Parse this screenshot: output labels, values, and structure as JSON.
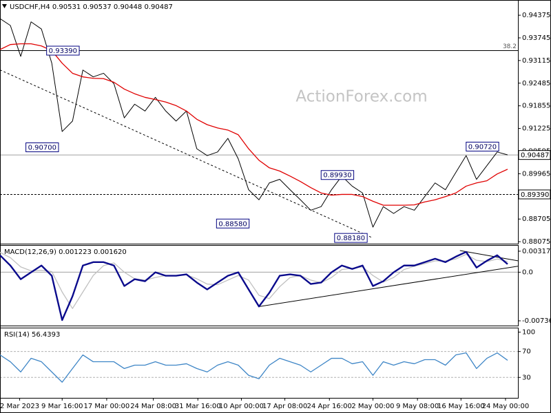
{
  "chart_data": [
    {
      "type": "line",
      "title": "USDCHF,H4  0.90531 0.90537 0.90448 0.90487",
      "watermark": "ActionForex.com",
      "x": [
        0,
        1,
        2,
        3,
        4,
        5,
        6,
        7,
        8,
        9,
        10,
        11,
        12,
        13,
        14,
        15,
        16,
        17,
        18,
        19,
        20,
        21,
        22,
        23,
        24,
        25,
        26,
        27,
        28,
        29,
        30,
        31,
        32,
        33,
        34,
        35,
        36,
        37,
        38,
        39,
        40,
        41,
        42,
        43,
        44,
        45,
        46,
        47,
        48,
        49
      ],
      "xlim": [
        0,
        50
      ],
      "ylim": [
        0.8802,
        0.9476
      ],
      "yticks": [
        0.94375,
        0.93745,
        0.93115,
        0.92485,
        0.91855,
        0.91225,
        0.90595,
        0.89965,
        0.88705,
        0.88075
      ],
      "series": [
        {
          "color": "#000000",
          "values": [
            0.9428,
            0.9409,
            0.9323,
            0.9419,
            0.9399,
            0.9304,
            0.9114,
            0.9143,
            0.9285,
            0.9266,
            0.9276,
            0.9247,
            0.9152,
            0.919,
            0.9171,
            0.9209,
            0.9171,
            0.9143,
            0.9171,
            0.9066,
            0.9047,
            0.9057,
            0.9095,
            0.9038,
            0.8952,
            0.8924,
            0.8971,
            0.8981,
            0.8952,
            0.8924,
            0.8895,
            0.8905,
            0.8952,
            0.899,
            0.8962,
            0.8943,
            0.8848,
            0.8905,
            0.8886,
            0.8905,
            0.8895,
            0.8933,
            0.8971,
            0.8952,
            0.9,
            0.9047,
            0.8981,
            0.9019,
            0.9057,
            0.9049
          ]
        },
        {
          "color": "#e00000",
          "values": [
            0.9342,
            0.9356,
            0.9358,
            0.9358,
            0.9352,
            0.9339,
            0.9304,
            0.9276,
            0.9266,
            0.9262,
            0.9261,
            0.9251,
            0.9232,
            0.9219,
            0.9209,
            0.9203,
            0.9196,
            0.9186,
            0.9171,
            0.9148,
            0.9133,
            0.9124,
            0.9118,
            0.9105,
            0.9066,
            0.9034,
            0.9013,
            0.9004,
            0.899,
            0.8975,
            0.8958,
            0.8943,
            0.8937,
            0.8939,
            0.8939,
            0.8933,
            0.892,
            0.8909,
            0.8909,
            0.8909,
            0.891,
            0.8918,
            0.8924,
            0.8933,
            0.8943,
            0.8962,
            0.8971,
            0.8977,
            0.8996,
            0.9009
          ]
        }
      ],
      "hlines": [
        {
          "value": 0.9339,
          "label": "38.2",
          "style": "solid",
          "color": "#000000"
        },
        {
          "value": 0.90487,
          "style": "solid",
          "color": "#a0a0a0"
        },
        {
          "value": 0.8939,
          "style": "dashed",
          "color": "#000000"
        }
      ],
      "trendlines": [
        {
          "x": [
            0,
            35.9
          ],
          "y": [
            0.92853,
            0.8819
          ],
          "style": "dashed",
          "color": "#000000"
        }
      ],
      "annotations": [
        {
          "label": "0.93390",
          "x": 4.5,
          "value": 0.9339
        },
        {
          "label": "0.90700",
          "x": 2.5,
          "value": 0.907
        },
        {
          "label": "0.88580",
          "x": 20.9,
          "value": 0.8858
        },
        {
          "label": "0.89930",
          "x": 31,
          "value": 0.8993
        },
        {
          "label": "0.88180",
          "x": 32.3,
          "value": 0.8818
        },
        {
          "label": "0.90720",
          "x": 45,
          "value": 0.9072
        }
      ],
      "axis_markers": [
        {
          "value": 0.90487,
          "label": "0.90487"
        },
        {
          "value": 0.8939,
          "label": "0.89390"
        }
      ]
    },
    {
      "type": "line",
      "title": "MACD(12,26,9) 0.001223 0.001620",
      "x": [
        0,
        1,
        2,
        3,
        4,
        5,
        6,
        7,
        8,
        9,
        10,
        11,
        12,
        13,
        14,
        15,
        16,
        17,
        18,
        19,
        20,
        21,
        22,
        23,
        24,
        25,
        26,
        27,
        28,
        29,
        30,
        31,
        32,
        33,
        34,
        35,
        36,
        37,
        38,
        39,
        40,
        41,
        42,
        43,
        44,
        45,
        46,
        47,
        48,
        49
      ],
      "xlim": [
        0,
        50
      ],
      "ylim": [
        -0.008084,
        0.004005
      ],
      "yticks": [
        0.003178,
        {
          "value": 0,
          "label": "0.0"
        },
        -0.007361
      ],
      "series": [
        {
          "color": "#c0c0c0",
          "values": [
            0.003,
            0.0022,
            0.0008,
            0.0002,
            0.0003,
            0.0001,
            -0.003,
            -0.0055,
            -0.003,
            -0.0005,
            0.001,
            0.0014,
            0,
            -0.001,
            -0.0012,
            -0.0008,
            -0.0005,
            -0.0005,
            -0.0004,
            -0.001,
            -0.0018,
            -0.0019,
            -0.0012,
            -0.0005,
            -0.0012,
            -0.0035,
            -0.004,
            -0.0022,
            -0.0008,
            -0.0005,
            -0.0012,
            -0.0016,
            -0.0008,
            0.0004,
            0.0006,
            0.0008,
            -0.0005,
            -0.0015,
            -0.0008,
            0.0004,
            0.0009,
            0.0013,
            0.0017,
            0.0017,
            0.002,
            0.0027,
            0.0018,
            0.0016,
            0.002,
            0.00162
          ]
        },
        {
          "color": "#0a0a8c",
          "values": [
            0.00256,
            0.00101,
            -0.00106,
            -2e-05,
            0.00101,
            -0.00054,
            -0.00725,
            -0.00364,
            0.00101,
            0.00152,
            0.00152,
            0.00101,
            -0.00209,
            -0.00106,
            -0.00137,
            -2e-05,
            -0.00054,
            -0.00054,
            -0.00033,
            -0.00157,
            -0.00261,
            -0.00157,
            -0.00054,
            -2e-05,
            -0.00261,
            -0.00519,
            -0.00312,
            -0.00054,
            -0.00033,
            -0.00054,
            -0.00178,
            -0.00157,
            -2e-05,
            0.00101,
            0.00049,
            0.00101,
            -0.00209,
            -0.00137,
            -2e-05,
            0.00101,
            0.00101,
            0.00152,
            0.00204,
            0.00152,
            0.00235,
            0.00307,
            0.0007,
            0.00173,
            0.00256,
            0.00122
          ]
        }
      ],
      "hlines": [
        {
          "value": 0,
          "style": "solid",
          "color": "#a0a0a0"
        }
      ],
      "trendlines": [
        {
          "x": [
            25.07,
            50
          ],
          "y": [
            -0.00519,
            0.00091
          ],
          "style": "solid",
          "color": "#000000"
        },
        {
          "x": [
            44.4,
            50
          ],
          "y": [
            0.00328,
            0.00173
          ],
          "style": "solid",
          "color": "#000000"
        }
      ]
    },
    {
      "type": "line",
      "title": "RSI(14) 56.4393",
      "x": [
        0,
        1,
        2,
        3,
        4,
        5,
        6,
        7,
        8,
        9,
        10,
        11,
        12,
        13,
        14,
        15,
        16,
        17,
        18,
        19,
        20,
        21,
        22,
        23,
        24,
        25,
        26,
        27,
        28,
        29,
        30,
        31,
        32,
        33,
        34,
        35,
        36,
        37,
        38,
        39,
        40,
        41,
        42,
        43,
        44,
        45,
        46,
        47,
        48,
        49
      ],
      "xlim": [
        0,
        50
      ],
      "ylim": [
        -1.6,
        105.8
      ],
      "yticks": [
        100,
        70,
        30
      ],
      "series": [
        {
          "color": "#3d85c6",
          "values": [
            64.7,
            54.2,
            38.4,
            59.5,
            54.2,
            38.4,
            22.6,
            43.7,
            64.7,
            54.2,
            54.2,
            54.2,
            43.7,
            48.9,
            48.9,
            54.2,
            48.9,
            48.9,
            51.1,
            43.7,
            38.4,
            48.9,
            54.2,
            48.9,
            33.2,
            27.9,
            48.9,
            59.5,
            54.2,
            48.9,
            38.4,
            48.9,
            59.5,
            59.5,
            51.1,
            54.2,
            33.2,
            54.2,
            48.9,
            54.2,
            51.1,
            57.4,
            57.4,
            48.9,
            64.7,
            67.9,
            43.7,
            59.5,
            67.9,
            56.4393
          ]
        }
      ],
      "hlines": [
        {
          "value": 70,
          "style": "dashed",
          "color": "#b0b0b0"
        },
        {
          "value": 30,
          "style": "dashed",
          "color": "#b0b0b0"
        }
      ],
      "xticks": [
        {
          "value": 1.9,
          "label": "2 Mar 2023"
        },
        {
          "value": 6,
          "label": "9 Mar 16:00"
        },
        {
          "value": 10.3,
          "label": "17 Mar 00:00"
        },
        {
          "value": 14.8,
          "label": "24 Mar 08:00"
        },
        {
          "value": 19.1,
          "label": "31 Mar 16:00"
        },
        {
          "value": 23.3,
          "label": "10 Apr 00:00"
        },
        {
          "value": 27.5,
          "label": "17 Apr 08:00"
        },
        {
          "value": 31.8,
          "label": "24 Apr 16:00"
        },
        {
          "value": 36,
          "label": "2 May 00:00"
        },
        {
          "value": 40.3,
          "label": "9 May 08:00"
        },
        {
          "value": 44.5,
          "label": "16 May 16:00"
        },
        {
          "value": 48.8,
          "label": "24 May 00:00"
        }
      ]
    }
  ]
}
